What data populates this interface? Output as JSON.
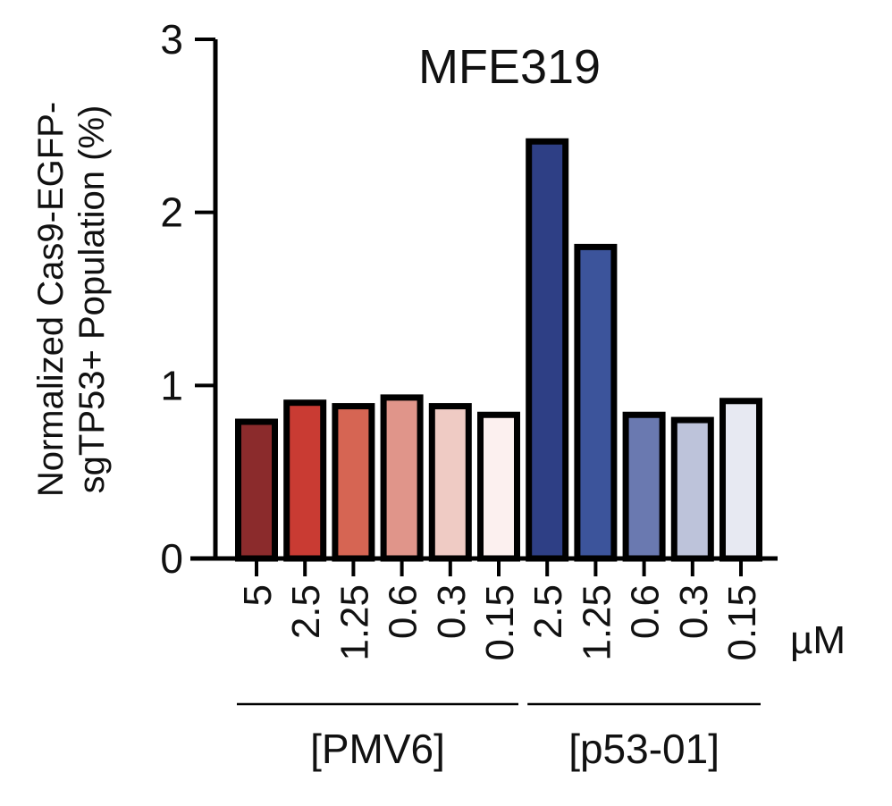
{
  "chart_data": {
    "type": "bar",
    "title": "MFE319",
    "ylabel_lines": [
      "Normalized Cas9-EGFP-",
      "sgTP53+ Population (%)"
    ],
    "ylim": [
      0,
      3
    ],
    "yticks": [
      "0",
      "1",
      "2",
      "3"
    ],
    "unit": "µM",
    "categories": [
      "5",
      "2.5",
      "1.25",
      "0.6",
      "0.3",
      "0.15",
      "2.5",
      "1.25",
      "0.6",
      "0.3",
      "0.15"
    ],
    "values": [
      0.79,
      0.9,
      0.88,
      0.93,
      0.88,
      0.83,
      2.41,
      1.8,
      0.83,
      0.8,
      0.91
    ],
    "colors": [
      "#8b2b2c",
      "#c93b33",
      "#d66553",
      "#e0958a",
      "#efcbc4",
      "#fcf0ef",
      "#2e3f85",
      "#3c549b",
      "#6a79b0",
      "#bdc3da",
      "#e7e9f2"
    ],
    "groups": [
      {
        "label": "[PMV6]",
        "start": 0,
        "end": 5
      },
      {
        "label": "[p53-01]",
        "start": 6,
        "end": 10
      }
    ],
    "grid": false,
    "legend": "none"
  }
}
